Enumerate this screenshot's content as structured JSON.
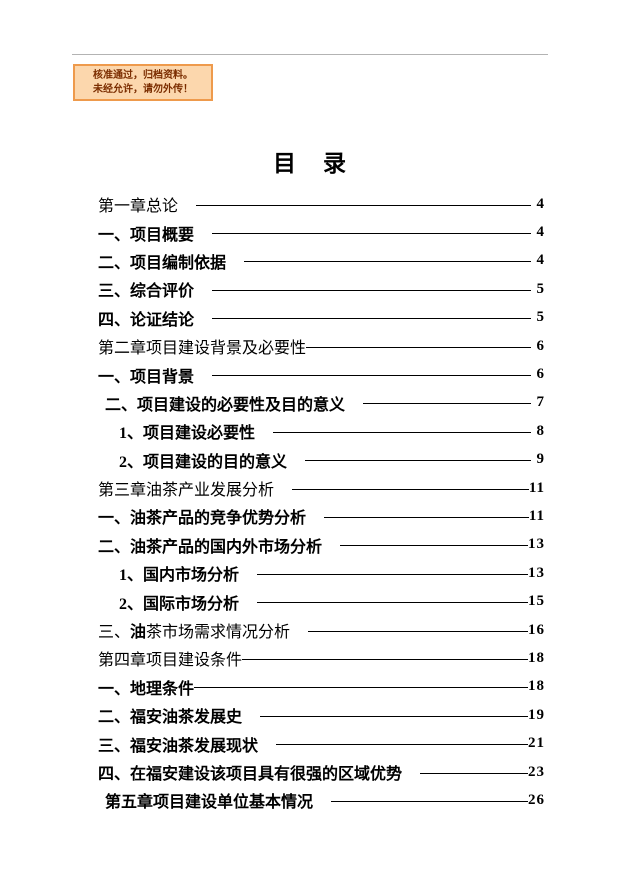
{
  "stamp": {
    "line1": "核准通过，归档资料。",
    "line2": "未经允许，请勿外传！",
    "background": "#FCD7AD",
    "border_color": "#EE9A4C",
    "text_color": "#7B2D00"
  },
  "title": "目　录",
  "toc": {
    "leader_color": "#000000",
    "entries": [
      {
        "parts": [
          {
            "text": "第一章总论",
            "bold": false
          }
        ],
        "page": "4",
        "indent": 0,
        "gap": true
      },
      {
        "parts": [
          {
            "text": "一、项目概要",
            "bold": true
          }
        ],
        "page": "4",
        "indent": 0,
        "gap": true
      },
      {
        "parts": [
          {
            "text": "二、项目编制依据",
            "bold": true
          }
        ],
        "page": "4",
        "indent": 0,
        "gap": true
      },
      {
        "parts": [
          {
            "text": "三、综合评价",
            "bold": true
          }
        ],
        "page": "5",
        "indent": 0,
        "gap": true
      },
      {
        "parts": [
          {
            "text": "四、论证结论",
            "bold": true
          }
        ],
        "page": "5",
        "indent": 0,
        "gap": true
      },
      {
        "parts": [
          {
            "text": "第二章项目建设背景及必要性",
            "bold": false
          }
        ],
        "page": "6",
        "indent": 0,
        "gap": false
      },
      {
        "parts": [
          {
            "text": "一、项目背景",
            "bold": true
          }
        ],
        "page": "6",
        "indent": 0,
        "gap": true
      },
      {
        "parts": [
          {
            "text": "二、项目建设的必要性及目的意义",
            "bold": true
          }
        ],
        "page": "7",
        "indent": 1,
        "gap": true
      },
      {
        "parts": [
          {
            "text": "1、项目建设必要性",
            "bold": true
          }
        ],
        "page": "8",
        "indent": 2,
        "gap": true
      },
      {
        "parts": [
          {
            "text": "2、项目建设的目的意义",
            "bold": true
          }
        ],
        "page": "9",
        "indent": 2,
        "gap": true
      },
      {
        "parts": [
          {
            "text": "第三章油茶产业发展分析",
            "bold": false
          }
        ],
        "page": "11",
        "indent": 0,
        "gap": true
      },
      {
        "parts": [
          {
            "text": "一、油茶产品的竞争优势分析",
            "bold": true
          }
        ],
        "page": "11",
        "indent": 0,
        "gap": true
      },
      {
        "parts": [
          {
            "text": "二、油茶产品的国内外市场分析",
            "bold": true
          }
        ],
        "page": "13",
        "indent": 0,
        "gap": true
      },
      {
        "parts": [
          {
            "text": "1、国内市场分析",
            "bold": true
          }
        ],
        "page": "13",
        "indent": 2,
        "gap": true
      },
      {
        "parts": [
          {
            "text": "2、国际市场分析",
            "bold": true
          }
        ],
        "page": "15",
        "indent": 2,
        "gap": true
      },
      {
        "parts": [
          {
            "text": "三、",
            "bold": false
          },
          {
            "text": "油",
            "bold": true
          },
          {
            "text": "茶市场需求情况分析",
            "bold": false
          }
        ],
        "page": "16",
        "indent": 0,
        "gap": true
      },
      {
        "parts": [
          {
            "text": "第四章项目建设条件",
            "bold": false
          }
        ],
        "page": "18",
        "indent": 0,
        "gap": false
      },
      {
        "parts": [
          {
            "text": "一、地理条件",
            "bold": true
          }
        ],
        "page": "18",
        "indent": 0,
        "gap": false
      },
      {
        "parts": [
          {
            "text": "二、福安油茶发展史",
            "bold": true
          }
        ],
        "page": "19",
        "indent": 0,
        "gap": true
      },
      {
        "parts": [
          {
            "text": "三、福安油茶发展现状",
            "bold": true
          }
        ],
        "page": "21",
        "indent": 0,
        "gap": true
      },
      {
        "parts": [
          {
            "text": "四、在福安建设该项目具有很强的区域优势",
            "bold": true
          }
        ],
        "page": "23",
        "indent": 0,
        "gap": true
      },
      {
        "parts": [
          {
            "text": "第五章项目建设单位基本情况",
            "bold": true
          }
        ],
        "page": "26",
        "indent": 1,
        "gap": true
      }
    ]
  }
}
